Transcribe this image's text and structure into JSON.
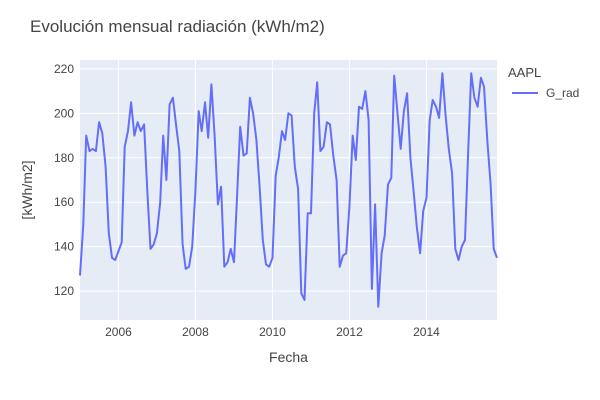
{
  "chart_data": {
    "type": "line",
    "title": "Evolución mensual radiación (kWh/m2)",
    "xlabel": "Fecha",
    "ylabel": "[kWh/m2]",
    "legend_title": "AAPL",
    "legend_position": "right",
    "grid": true,
    "colors": {
      "series": "#636efa",
      "plot_bg": "#e5ecf6",
      "grid": "#ffffff"
    },
    "xlim": [
      "2005-01-01",
      "2015-11-01"
    ],
    "ylim": [
      107,
      224
    ],
    "x_ticks": [
      {
        "label": "2006",
        "value": "2006-01-01"
      },
      {
        "label": "2008",
        "value": "2008-01-01"
      },
      {
        "label": "2010",
        "value": "2010-01-01"
      },
      {
        "label": "2012",
        "value": "2012-01-01"
      },
      {
        "label": "2014",
        "value": "2014-01-01"
      }
    ],
    "y_ticks": [
      120,
      140,
      160,
      180,
      200,
      220
    ],
    "series": [
      {
        "name": "G_rad",
        "x": [
          "2005-01",
          "2005-02",
          "2005-03",
          "2005-04",
          "2005-05",
          "2005-06",
          "2005-07",
          "2005-08",
          "2005-09",
          "2005-10",
          "2005-11",
          "2005-12",
          "2006-01",
          "2006-02",
          "2006-03",
          "2006-04",
          "2006-05",
          "2006-06",
          "2006-07",
          "2006-08",
          "2006-09",
          "2006-10",
          "2006-11",
          "2006-12",
          "2007-01",
          "2007-02",
          "2007-03",
          "2007-04",
          "2007-05",
          "2007-06",
          "2007-07",
          "2007-08",
          "2007-09",
          "2007-10",
          "2007-11",
          "2007-12",
          "2008-01",
          "2008-02",
          "2008-03",
          "2008-04",
          "2008-05",
          "2008-06",
          "2008-07",
          "2008-08",
          "2008-09",
          "2008-10",
          "2008-11",
          "2008-12",
          "2009-01",
          "2009-02",
          "2009-03",
          "2009-04",
          "2009-05",
          "2009-06",
          "2009-07",
          "2009-08",
          "2009-09",
          "2009-10",
          "2009-11",
          "2009-12",
          "2010-01",
          "2010-02",
          "2010-03",
          "2010-04",
          "2010-05",
          "2010-06",
          "2010-07",
          "2010-08",
          "2010-09",
          "2010-10",
          "2010-11",
          "2010-12",
          "2011-01",
          "2011-02",
          "2011-03",
          "2011-04",
          "2011-05",
          "2011-06",
          "2011-07",
          "2011-08",
          "2011-09",
          "2011-10",
          "2011-11",
          "2011-12",
          "2012-01",
          "2012-02",
          "2012-03",
          "2012-04",
          "2012-05",
          "2012-06",
          "2012-07",
          "2012-08",
          "2012-09",
          "2012-10",
          "2012-11",
          "2012-12",
          "2013-01",
          "2013-02",
          "2013-03",
          "2013-04",
          "2013-05",
          "2013-06",
          "2013-07",
          "2013-08",
          "2013-09",
          "2013-10",
          "2013-11",
          "2013-12",
          "2014-01",
          "2014-02",
          "2014-03",
          "2014-04",
          "2014-05",
          "2014-06",
          "2014-07",
          "2014-08",
          "2014-09",
          "2014-10",
          "2014-11",
          "2014-12",
          "2015-01",
          "2015-02",
          "2015-03",
          "2015-04",
          "2015-05",
          "2015-06",
          "2015-07",
          "2015-08",
          "2015-09",
          "2015-10",
          "2015-11"
        ],
        "values": [
          127,
          150,
          190,
          183,
          184,
          183,
          196,
          191,
          176,
          146,
          135,
          134,
          138,
          142,
          185,
          192,
          205,
          190,
          196,
          192,
          195,
          165,
          139,
          141,
          146,
          160,
          190,
          170,
          204,
          207,
          195,
          183,
          141,
          130,
          131,
          140,
          165,
          201,
          192,
          205,
          189,
          213,
          190,
          159,
          167,
          131,
          133,
          139,
          133,
          165,
          194,
          181,
          182,
          207,
          200,
          188,
          167,
          143,
          132,
          131,
          135,
          172,
          180,
          192,
          188,
          200,
          199,
          176,
          166,
          119,
          116,
          155,
          155,
          200,
          214,
          183,
          185,
          196,
          195,
          181,
          170,
          131,
          136,
          137,
          158,
          190,
          179,
          203,
          202,
          210,
          197,
          121,
          159,
          113,
          137,
          145,
          168,
          171,
          217,
          200,
          184,
          201,
          209,
          180,
          165,
          149,
          137,
          156,
          162,
          197,
          206,
          203,
          198,
          218,
          199,
          184,
          173,
          139,
          134,
          140,
          143,
          183,
          218,
          207,
          203,
          216,
          212,
          188,
          168,
          139,
          135
        ]
      }
    ]
  }
}
